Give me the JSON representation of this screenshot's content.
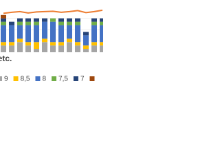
{
  "chart_data": {
    "type": "bar",
    "stacked": true,
    "title": "F etc.",
    "series": [
      {
        "name": "9",
        "color": "#a5a5a5",
        "values": [
          2,
          2,
          3,
          2,
          1,
          3,
          2,
          2,
          3,
          2,
          1,
          2,
          2
        ]
      },
      {
        "name": "8,5",
        "color": "#ffc000",
        "values": [
          1,
          1,
          1,
          1,
          2,
          1,
          1,
          1,
          1,
          1,
          1,
          1,
          1
        ]
      },
      {
        "name": "8",
        "color": "#4472c4",
        "values": [
          5,
          5,
          4,
          5,
          5,
          5,
          6,
          5,
          4,
          5,
          3,
          5,
          5
        ]
      },
      {
        "name": "7,5",
        "color": "#70ad47",
        "values": [
          1,
          0,
          1,
          1,
          1,
          0,
          1,
          1,
          1,
          1,
          0,
          1,
          1
        ]
      },
      {
        "name": "7",
        "color": "#264478",
        "values": [
          1,
          1,
          1,
          1,
          1,
          1,
          0,
          1,
          1,
          1,
          1,
          1,
          1
        ]
      },
      {
        "color": "#9e480e",
        "values": [
          1,
          0,
          0,
          0,
          0,
          0,
          0,
          0,
          0,
          0,
          0,
          0,
          0
        ]
      }
    ],
    "line": {
      "color": "#ed7d31",
      "values": [
        11.5,
        11.8,
        12,
        11.6,
        11.9,
        12,
        12.1,
        11.8,
        12,
        12.3,
        11.7,
        12,
        12.4
      ]
    },
    "grid": true
  }
}
